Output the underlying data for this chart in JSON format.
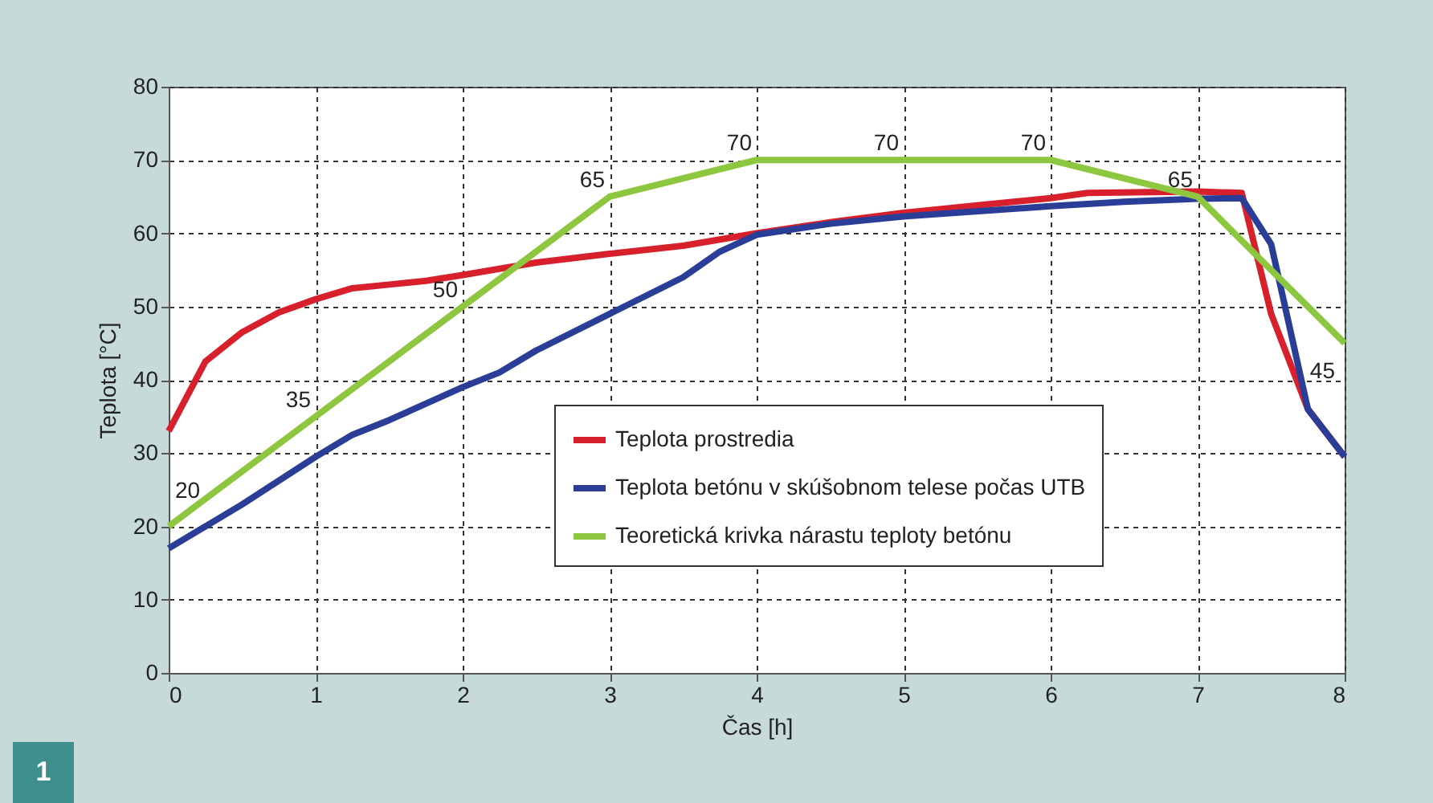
{
  "chart_data": {
    "type": "line",
    "xlabel": "Čas [h]",
    "ylabel": "Teplota [°C]",
    "xlim": [
      0,
      8
    ],
    "xticks": [
      0,
      1,
      2,
      3,
      4,
      5,
      6,
      7,
      8
    ],
    "ylim": [
      0,
      80
    ],
    "yticks": [
      0,
      10,
      20,
      30,
      40,
      50,
      60,
      70,
      80
    ],
    "grid": true,
    "legend": "bottom right",
    "line_style": "solid",
    "marker": "none",
    "annotations": [
      "1"
    ],
    "series": [
      {
        "name": "Teplota prostredia",
        "color": "#d7202b",
        "x": [
          0,
          0.25,
          0.5,
          0.75,
          1,
          1.25,
          1.5,
          1.75,
          2,
          2.5,
          3,
          3.5,
          4,
          4.5,
          5,
          5.5,
          6,
          6.25,
          7,
          7.3,
          7.5,
          7.75,
          8
        ],
        "values": [
          33,
          42.5,
          46.5,
          49.2,
          51,
          52.5,
          53,
          53.5,
          54.3,
          56,
          57.2,
          58.3,
          60,
          61.5,
          62.8,
          63.8,
          64.8,
          65.5,
          65.7,
          65.5,
          49,
          36,
          29.5
        ]
      },
      {
        "name": "Teplota betónu v skúšobnom telese počas UTB",
        "color": "#2b3e97",
        "x": [
          0,
          0.25,
          0.5,
          1,
          1.25,
          1.5,
          2,
          2.25,
          2.5,
          3,
          3.5,
          3.75,
          4,
          4.5,
          5,
          6,
          6.5,
          7,
          7.3,
          7.5,
          7.75,
          8
        ],
        "values": [
          17,
          20,
          23,
          29.5,
          32.5,
          34.5,
          39,
          41,
          44,
          49,
          54,
          57.5,
          59.8,
          61.3,
          62.3,
          63.7,
          64.3,
          64.7,
          64.8,
          58.5,
          36,
          29.5
        ]
      },
      {
        "name": "Teoretická krivka nárastu teploty betónu",
        "color": "#8dc63f",
        "x": [
          0,
          1,
          2,
          3,
          4,
          5,
          6,
          7,
          8
        ],
        "values": [
          20,
          35,
          50,
          65,
          70,
          70,
          70,
          65,
          45
        ],
        "value_labels": [
          "20",
          "35",
          "50",
          "65",
          "70",
          "70",
          "70",
          "65",
          "45"
        ]
      }
    ]
  }
}
